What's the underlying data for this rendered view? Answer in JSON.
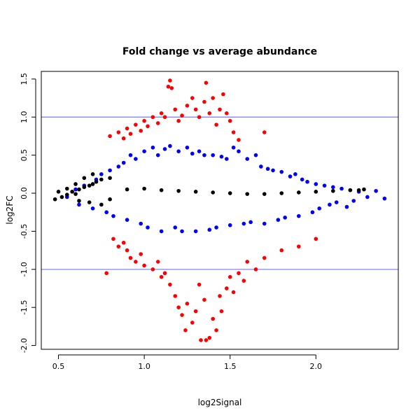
{
  "chart_data": {
    "type": "scatter",
    "title": "Fold change vs average abundance",
    "xlabel": "log2Signal",
    "ylabel": "log2FC",
    "xlim": [
      0.4,
      2.48
    ],
    "ylim": [
      -2.05,
      1.6
    ],
    "xticks": [
      0.5,
      1.0,
      1.5,
      2.0
    ],
    "xtick_labels": [
      "0.5",
      "1.0",
      "1.5",
      "2.0"
    ],
    "yticks": [
      -2.0,
      -1.5,
      -1.0,
      -0.5,
      0.0,
      0.5,
      1.0,
      1.5
    ],
    "ytick_labels": [
      "-2.0",
      "-1.5",
      "-1.0",
      "-0.5",
      "0.0",
      "0.5",
      "1.0",
      "1.5"
    ],
    "grid": false,
    "hlines": [
      {
        "y": 1.0,
        "color": "#7777ff"
      },
      {
        "y": -1.0,
        "color": "#7777ff"
      }
    ],
    "series": [
      {
        "color": "#0000ff",
        "points": [
          [
            0.55,
            -0.05
          ],
          [
            0.6,
            0.05
          ],
          [
            0.62,
            -0.15
          ],
          [
            0.65,
            0.1
          ],
          [
            0.7,
            -0.2
          ],
          [
            0.72,
            0.18
          ],
          [
            0.75,
            0.25
          ],
          [
            0.78,
            -0.25
          ],
          [
            0.8,
            0.3
          ],
          [
            0.82,
            -0.3
          ],
          [
            0.85,
            0.35
          ],
          [
            0.88,
            0.4
          ],
          [
            0.9,
            -0.35
          ],
          [
            0.92,
            0.5
          ],
          [
            0.95,
            0.45
          ],
          [
            0.98,
            -0.4
          ],
          [
            1.0,
            0.55
          ],
          [
            1.02,
            -0.45
          ],
          [
            1.05,
            0.6
          ],
          [
            1.08,
            0.5
          ],
          [
            1.1,
            -0.5
          ],
          [
            1.12,
            0.58
          ],
          [
            1.15,
            0.62
          ],
          [
            1.18,
            -0.45
          ],
          [
            1.2,
            0.55
          ],
          [
            1.22,
            -0.5
          ],
          [
            1.25,
            0.6
          ],
          [
            1.28,
            0.52
          ],
          [
            1.3,
            -0.5
          ],
          [
            1.32,
            0.55
          ],
          [
            1.35,
            0.5
          ],
          [
            1.38,
            -0.48
          ],
          [
            1.4,
            0.5
          ],
          [
            1.42,
            -0.45
          ],
          [
            1.45,
            0.48
          ],
          [
            1.48,
            0.45
          ],
          [
            1.5,
            -0.42
          ],
          [
            1.52,
            0.6
          ],
          [
            1.55,
            0.55
          ],
          [
            1.58,
            -0.4
          ],
          [
            1.6,
            0.45
          ],
          [
            1.62,
            -0.38
          ],
          [
            1.65,
            0.5
          ],
          [
            1.68,
            0.35
          ],
          [
            1.7,
            -0.4
          ],
          [
            1.72,
            0.32
          ],
          [
            1.75,
            0.3
          ],
          [
            1.78,
            -0.35
          ],
          [
            1.8,
            0.28
          ],
          [
            1.82,
            -0.32
          ],
          [
            1.85,
            0.22
          ],
          [
            1.88,
            0.25
          ],
          [
            1.9,
            -0.3
          ],
          [
            1.92,
            0.18
          ],
          [
            1.95,
            0.15
          ],
          [
            1.98,
            -0.25
          ],
          [
            2.0,
            0.12
          ],
          [
            2.02,
            -0.2
          ],
          [
            2.05,
            0.1
          ],
          [
            2.08,
            -0.15
          ],
          [
            2.1,
            0.08
          ],
          [
            2.12,
            -0.12
          ],
          [
            2.15,
            0.06
          ],
          [
            2.18,
            -0.18
          ],
          [
            2.2,
            0.04
          ],
          [
            2.22,
            -0.1
          ],
          [
            2.25,
            0.02
          ],
          [
            2.3,
            -0.05
          ],
          [
            2.35,
            0.03
          ],
          [
            2.4,
            -0.07
          ]
        ]
      },
      {
        "color": "#000000",
        "points": [
          [
            0.48,
            -0.08
          ],
          [
            0.52,
            -0.05
          ],
          [
            0.55,
            -0.02
          ],
          [
            0.58,
            0.02
          ],
          [
            0.6,
            -0.01
          ],
          [
            0.62,
            0.05
          ],
          [
            0.65,
            0.08
          ],
          [
            0.68,
            0.1
          ],
          [
            0.7,
            0.12
          ],
          [
            0.72,
            0.15
          ],
          [
            0.75,
            0.18
          ],
          [
            0.8,
            0.2
          ],
          [
            0.5,
            0.02
          ],
          [
            0.55,
            0.06
          ],
          [
            0.6,
            0.12
          ],
          [
            0.65,
            0.2
          ],
          [
            0.7,
            0.25
          ],
          [
            0.62,
            -0.1
          ],
          [
            0.68,
            -0.12
          ],
          [
            0.75,
            -0.15
          ],
          [
            0.8,
            -0.08
          ],
          [
            0.9,
            0.05
          ],
          [
            1.0,
            0.06
          ],
          [
            1.1,
            0.04
          ],
          [
            1.2,
            0.03
          ],
          [
            1.3,
            0.02
          ],
          [
            1.4,
            0.01
          ],
          [
            1.5,
            0.0
          ],
          [
            1.6,
            -0.01
          ],
          [
            1.7,
            -0.01
          ],
          [
            1.8,
            0.0
          ],
          [
            1.9,
            0.01
          ],
          [
            2.0,
            0.02
          ],
          [
            2.1,
            0.03
          ],
          [
            2.2,
            0.04
          ],
          [
            2.25,
            0.04
          ],
          [
            2.28,
            0.05
          ]
        ]
      },
      {
        "color": "#ff0000",
        "points": [
          [
            0.8,
            0.75
          ],
          [
            0.85,
            0.8
          ],
          [
            0.88,
            0.72
          ],
          [
            0.9,
            0.85
          ],
          [
            0.92,
            0.78
          ],
          [
            0.95,
            0.9
          ],
          [
            0.98,
            0.82
          ],
          [
            1.0,
            0.95
          ],
          [
            1.02,
            0.88
          ],
          [
            1.05,
            1.0
          ],
          [
            1.08,
            0.92
          ],
          [
            1.1,
            1.05
          ],
          [
            1.12,
            1.0
          ],
          [
            1.14,
            1.4
          ],
          [
            1.15,
            1.48
          ],
          [
            1.16,
            1.38
          ],
          [
            1.18,
            1.1
          ],
          [
            1.2,
            0.95
          ],
          [
            1.22,
            1.02
          ],
          [
            1.25,
            1.15
          ],
          [
            1.28,
            1.25
          ],
          [
            1.3,
            1.1
          ],
          [
            1.32,
            1.0
          ],
          [
            1.35,
            1.2
          ],
          [
            1.36,
            1.45
          ],
          [
            1.38,
            1.05
          ],
          [
            1.4,
            1.25
          ],
          [
            1.42,
            0.9
          ],
          [
            1.44,
            1.1
          ],
          [
            1.46,
            1.3
          ],
          [
            1.48,
            1.05
          ],
          [
            1.5,
            0.95
          ],
          [
            1.52,
            0.8
          ],
          [
            1.55,
            0.7
          ],
          [
            1.7,
            0.8
          ],
          [
            0.82,
            -0.6
          ],
          [
            0.85,
            -0.7
          ],
          [
            0.88,
            -0.65
          ],
          [
            0.9,
            -0.75
          ],
          [
            0.92,
            -0.85
          ],
          [
            0.95,
            -0.9
          ],
          [
            0.98,
            -0.8
          ],
          [
            1.0,
            -0.95
          ],
          [
            1.05,
            -1.0
          ],
          [
            1.08,
            -0.9
          ],
          [
            1.1,
            -1.1
          ],
          [
            1.12,
            -1.05
          ],
          [
            1.15,
            -1.2
          ],
          [
            1.18,
            -1.35
          ],
          [
            1.2,
            -1.5
          ],
          [
            1.22,
            -1.6
          ],
          [
            1.24,
            -1.8
          ],
          [
            1.25,
            -1.45
          ],
          [
            1.28,
            -1.7
          ],
          [
            1.3,
            -1.55
          ],
          [
            1.32,
            -1.2
          ],
          [
            1.35,
            -1.4
          ],
          [
            1.38,
            -1.9
          ],
          [
            1.4,
            -1.65
          ],
          [
            1.42,
            -1.8
          ],
          [
            1.44,
            -1.35
          ],
          [
            1.45,
            -1.55
          ],
          [
            1.48,
            -1.25
          ],
          [
            1.5,
            -1.1
          ],
          [
            1.52,
            -1.3
          ],
          [
            1.55,
            -1.05
          ],
          [
            1.58,
            -1.15
          ],
          [
            1.6,
            -0.9
          ],
          [
            1.65,
            -1.0
          ],
          [
            1.7,
            -0.85
          ],
          [
            1.8,
            -0.75
          ],
          [
            1.9,
            -0.7
          ],
          [
            2.0,
            -0.6
          ],
          [
            0.78,
            -1.05
          ],
          [
            1.36,
            -1.93
          ],
          [
            1.33,
            -1.93
          ]
        ]
      }
    ]
  }
}
